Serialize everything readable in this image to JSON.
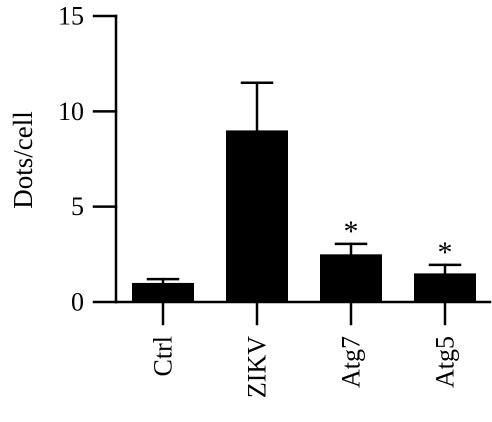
{
  "chart_data": {
    "type": "bar",
    "title": "",
    "xlabel": "",
    "ylabel": "Dots/cell",
    "ylim": [
      0,
      15
    ],
    "yticks": [
      0,
      5,
      10,
      15
    ],
    "y_tick_labels": [
      "0",
      "5",
      "10",
      "15"
    ],
    "categories": [
      "Ctrl",
      "ZIKV",
      "Atg7",
      "Atg5"
    ],
    "series": [
      {
        "values": [
          1.0,
          9.0,
          2.5,
          1.5
        ],
        "errors": [
          0.2,
          2.5,
          0.55,
          0.45
        ]
      }
    ],
    "annotations": [
      "",
      "",
      "*",
      "*"
    ],
    "bar_color": "#000000",
    "grid": false,
    "legend": "none"
  }
}
